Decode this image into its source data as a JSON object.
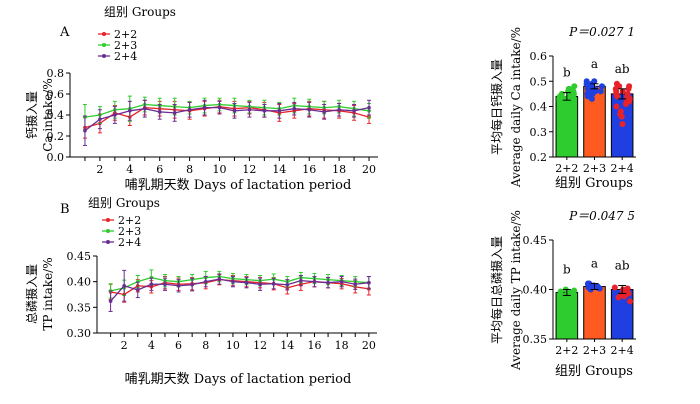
{
  "chart_data": [
    {
      "panel": "A",
      "type": "line",
      "legend_title": "组别 Groups",
      "xlabel": "哺乳期天数  Days of lactation period",
      "ylabel_cn": "钙摄入量",
      "ylabel_en": "Ca intake/%",
      "xlim": [
        0,
        20.6
      ],
      "ylim": [
        0.0,
        0.8
      ],
      "x_ticks": [
        "2",
        "4",
        "6",
        "8",
        "10",
        "12",
        "14",
        "16",
        "18",
        "20"
      ],
      "y_ticks": [
        "0.0",
        "0.2",
        "0.4",
        "0.6",
        "0.8"
      ],
      "x": [
        1,
        2,
        3,
        4,
        5,
        6,
        7,
        8,
        9,
        10,
        11,
        12,
        13,
        14,
        15,
        16,
        17,
        18,
        19,
        20
      ],
      "series": [
        {
          "name": "2+2",
          "color": "#e8222a",
          "values": [
            0.28,
            0.32,
            0.42,
            0.38,
            0.47,
            0.46,
            0.45,
            0.44,
            0.46,
            0.48,
            0.46,
            0.47,
            0.45,
            0.42,
            0.44,
            0.46,
            0.45,
            0.44,
            0.42,
            0.38
          ],
          "errors": [
            0.1,
            0.09,
            0.07,
            0.08,
            0.07,
            0.07,
            0.08,
            0.08,
            0.07,
            0.06,
            0.07,
            0.06,
            0.07,
            0.08,
            0.07,
            0.07,
            0.08,
            0.07,
            0.07,
            0.06
          ]
        },
        {
          "name": "2+3",
          "color": "#2ecc2e",
          "values": [
            0.38,
            0.4,
            0.45,
            0.46,
            0.5,
            0.49,
            0.48,
            0.47,
            0.49,
            0.5,
            0.49,
            0.48,
            0.47,
            0.46,
            0.49,
            0.48,
            0.47,
            0.48,
            0.46,
            0.44
          ],
          "errors": [
            0.12,
            0.08,
            0.08,
            0.12,
            0.07,
            0.07,
            0.08,
            0.06,
            0.07,
            0.06,
            0.07,
            0.06,
            0.07,
            0.06,
            0.07,
            0.07,
            0.06,
            0.06,
            0.07,
            0.07
          ]
        },
        {
          "name": "2+4",
          "color": "#6a2c91",
          "values": [
            0.25,
            0.36,
            0.4,
            0.44,
            0.46,
            0.43,
            0.42,
            0.45,
            0.47,
            0.47,
            0.44,
            0.45,
            0.44,
            0.44,
            0.46,
            0.45,
            0.43,
            0.45,
            0.44,
            0.47
          ],
          "errors": [
            0.14,
            0.09,
            0.08,
            0.09,
            0.08,
            0.07,
            0.08,
            0.07,
            0.07,
            0.06,
            0.07,
            0.07,
            0.06,
            0.07,
            0.06,
            0.07,
            0.07,
            0.06,
            0.06,
            0.07
          ]
        }
      ]
    },
    {
      "panel": "A",
      "type": "bar",
      "p_value": "P＝0.027 1",
      "xlabel": "组别 Groups",
      "ylabel_cn": "平均每日钙摄入量",
      "ylabel_en": "Average daily Ca intake/%",
      "ylim": [
        0.2,
        0.6
      ],
      "y_ticks": [
        "0.2",
        "0.3",
        "0.4",
        "0.5",
        "0.6"
      ],
      "categories": [
        "2+2",
        "2+3",
        "2+4"
      ],
      "values": [
        0.44,
        0.48,
        0.45
      ],
      "errors": [
        0.015,
        0.01,
        0.02
      ],
      "sig_letters": [
        "b",
        "a",
        "ab"
      ],
      "colors": [
        "#2ecc2e",
        "#ff5a1f",
        "#1f3fe0"
      ],
      "point_colors": [
        "#2ecc2e",
        "#1f3fe0",
        "#e8222a"
      ],
      "points": [
        [
          0.41,
          0.42,
          0.43,
          0.44,
          0.45,
          0.46,
          0.47,
          0.43,
          0.44,
          0.4,
          0.45,
          0.46,
          0.42,
          0.44,
          0.47,
          0.48,
          0.39,
          0.43,
          0.45,
          0.41
        ],
        [
          0.44,
          0.45,
          0.46,
          0.47,
          0.48,
          0.49,
          0.5,
          0.46,
          0.47,
          0.48,
          0.49,
          0.45,
          0.47,
          0.48,
          0.49,
          0.46,
          0.47,
          0.5,
          0.43,
          0.48
        ],
        [
          0.33,
          0.37,
          0.4,
          0.42,
          0.44,
          0.46,
          0.47,
          0.48,
          0.45,
          0.43,
          0.41,
          0.46,
          0.49,
          0.38,
          0.44,
          0.47,
          0.45,
          0.42,
          0.48,
          0.36
        ]
      ]
    },
    {
      "panel": "B",
      "type": "line",
      "legend_title": "组别 Groups",
      "xlabel": "哺乳期天数  Days of lactation period",
      "ylabel_cn": "总磷摄入量",
      "ylabel_en": "TP intake/%",
      "xlim": [
        0,
        20.6
      ],
      "ylim": [
        0.3,
        0.45
      ],
      "x_ticks": [
        "2",
        "4",
        "6",
        "8",
        "10",
        "12",
        "14",
        "16",
        "18",
        "20"
      ],
      "y_ticks": [
        "0.30",
        "0.35",
        "0.40",
        "0.45"
      ],
      "x": [
        1,
        2,
        3,
        4,
        5,
        6,
        7,
        8,
        9,
        10,
        11,
        12,
        13,
        14,
        15,
        16,
        17,
        18,
        19,
        20
      ],
      "series": [
        {
          "name": "2+2",
          "color": "#e8222a",
          "values": [
            0.38,
            0.375,
            0.392,
            0.39,
            0.398,
            0.395,
            0.396,
            0.398,
            0.404,
            0.402,
            0.4,
            0.398,
            0.396,
            0.388,
            0.395,
            0.4,
            0.398,
            0.396,
            0.39,
            0.386
          ],
          "errors": [
            0.015,
            0.015,
            0.012,
            0.012,
            0.012,
            0.012,
            0.012,
            0.012,
            0.01,
            0.01,
            0.01,
            0.01,
            0.012,
            0.012,
            0.012,
            0.01,
            0.01,
            0.01,
            0.012,
            0.012
          ]
        },
        {
          "name": "2+3",
          "color": "#2ecc2e",
          "values": [
            0.382,
            0.388,
            0.4,
            0.408,
            0.402,
            0.4,
            0.404,
            0.408,
            0.41,
            0.406,
            0.404,
            0.402,
            0.405,
            0.4,
            0.408,
            0.406,
            0.404,
            0.402,
            0.4,
            0.398
          ],
          "errors": [
            0.014,
            0.015,
            0.012,
            0.015,
            0.012,
            0.01,
            0.01,
            0.012,
            0.01,
            0.01,
            0.01,
            0.01,
            0.01,
            0.01,
            0.01,
            0.01,
            0.01,
            0.01,
            0.01,
            0.012
          ]
        },
        {
          "name": "2+4",
          "color": "#6a2c91",
          "values": [
            0.362,
            0.392,
            0.384,
            0.395,
            0.395,
            0.392,
            0.394,
            0.4,
            0.405,
            0.4,
            0.398,
            0.395,
            0.396,
            0.394,
            0.402,
            0.4,
            0.398,
            0.4,
            0.395,
            0.398
          ],
          "errors": [
            0.02,
            0.03,
            0.015,
            0.012,
            0.012,
            0.012,
            0.012,
            0.01,
            0.01,
            0.01,
            0.01,
            0.012,
            0.01,
            0.01,
            0.01,
            0.01,
            0.01,
            0.01,
            0.01,
            0.012
          ]
        }
      ]
    },
    {
      "panel": "B",
      "type": "bar",
      "p_value": "P＝0.047 5",
      "xlabel": "组别 Groups",
      "ylabel_cn": "平均每日总磷摄入量",
      "ylabel_en": "Average daily TP intake/%",
      "ylim": [
        0.35,
        0.45
      ],
      "y_ticks": [
        "0.35",
        "0.40",
        "0.45"
      ],
      "categories": [
        "2+2",
        "2+3",
        "2+4"
      ],
      "values": [
        0.397,
        0.403,
        0.4
      ],
      "errors": [
        0.003,
        0.003,
        0.004
      ],
      "sig_letters": [
        "b",
        "a",
        "ab"
      ],
      "colors": [
        "#2ecc2e",
        "#ff5a1f",
        "#1f3fe0"
      ],
      "point_colors": [
        "#2ecc2e",
        "#1f3fe0",
        "#e8222a"
      ],
      "points": [
        [
          0.392,
          0.394,
          0.396,
          0.398,
          0.4,
          0.393,
          0.397,
          0.395,
          0.399,
          0.391,
          0.396,
          0.398
        ],
        [
          0.4,
          0.402,
          0.404,
          0.406,
          0.401,
          0.403,
          0.405,
          0.402,
          0.404,
          0.406,
          0.403,
          0.401
        ],
        [
          0.392,
          0.395,
          0.398,
          0.4,
          0.402,
          0.394,
          0.388,
          0.397,
          0.399,
          0.401,
          0.396,
          0.393
        ]
      ]
    }
  ]
}
